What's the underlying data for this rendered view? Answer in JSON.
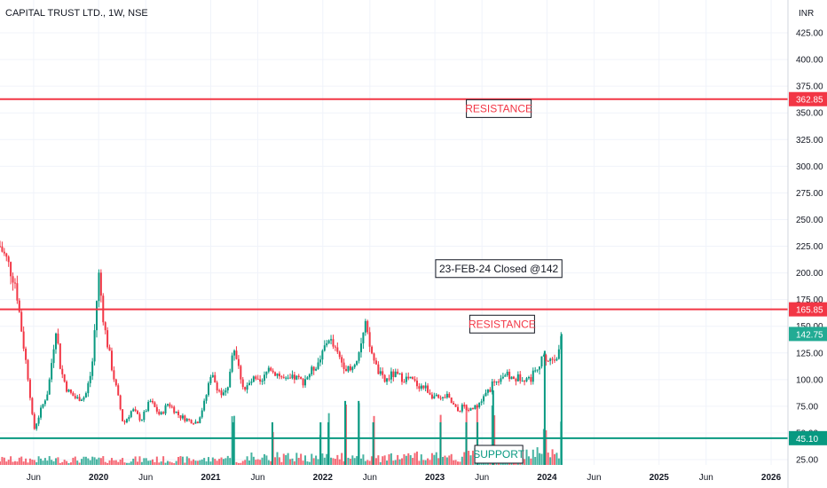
{
  "chart_data": {
    "type": "candlestick",
    "title": "CAPITAL TRUST LTD., 1W, NSE",
    "currency": "INR",
    "y_axis": {
      "range": [
        20,
        440
      ],
      "ticks": [
        "425.00",
        "400.00",
        "375.00",
        "350.00",
        "325.00",
        "300.00",
        "275.00",
        "250.00",
        "225.00",
        "200.00",
        "175.00",
        "150.00",
        "125.00",
        "100.00",
        "75.00",
        "50.00",
        "25.00"
      ],
      "tick_values": [
        425,
        400,
        375,
        350,
        325,
        300,
        275,
        250,
        225,
        200,
        175,
        150,
        125,
        100,
        75,
        50,
        25
      ]
    },
    "x_axis": {
      "labels": [
        "Jun",
        "2020",
        "Jun",
        "2021",
        "Jun",
        "2022",
        "Jun",
        "2023",
        "Jun",
        "2024",
        "Jun",
        "2025",
        "Jun",
        "2026"
      ],
      "dates": [
        2019.42,
        2020.0,
        2020.42,
        2021.0,
        2021.42,
        2022.0,
        2022.42,
        2023.0,
        2023.42,
        2024.0,
        2024.42,
        2025.0,
        2025.42,
        2026.0
      ],
      "range": [
        2019.12,
        2026.15
      ]
    },
    "levels": [
      {
        "label": "362.85",
        "value": 362.85,
        "color": "#f23645"
      },
      {
        "label": "165.85",
        "value": 165.85,
        "color": "#f23645"
      },
      {
        "label": "45.10",
        "value": 45.1,
        "color": "#089981"
      }
    ],
    "last_price": {
      "label": "142.75",
      "value": 142.75,
      "color": "#22ab94"
    },
    "annotations": [
      {
        "text": "RESISTANCE",
        "date": 2023.57,
        "value": 354,
        "color": "#f23645"
      },
      {
        "text": "23-FEB-24 Closed @142",
        "date": 2023.57,
        "value": 204,
        "color": "#131722"
      },
      {
        "text": "RESISTANCE",
        "date": 2023.6,
        "value": 152,
        "color": "#f23645"
      },
      {
        "text": "SUPPORT",
        "date": 2023.57,
        "value": 30,
        "color": "#089981"
      }
    ],
    "price_path": [
      [
        2019.12,
        225
      ],
      [
        2019.18,
        212
      ],
      [
        2019.26,
        190
      ],
      [
        2019.32,
        140
      ],
      [
        2019.38,
        95
      ],
      [
        2019.42,
        52
      ],
      [
        2019.48,
        70
      ],
      [
        2019.55,
        90
      ],
      [
        2019.62,
        150
      ],
      [
        2019.66,
        110
      ],
      [
        2019.72,
        90
      ],
      [
        2019.8,
        82
      ],
      [
        2019.88,
        84
      ],
      [
        2019.94,
        110
      ],
      [
        2020.0,
        200
      ],
      [
        2020.05,
        150
      ],
      [
        2020.12,
        110
      ],
      [
        2020.18,
        80
      ],
      [
        2020.22,
        58
      ],
      [
        2020.3,
        72
      ],
      [
        2020.38,
        62
      ],
      [
        2020.46,
        80
      ],
      [
        2020.55,
        66
      ],
      [
        2020.62,
        78
      ],
      [
        2020.72,
        66
      ],
      [
        2020.8,
        62
      ],
      [
        2020.88,
        60
      ],
      [
        2020.95,
        80
      ],
      [
        2021.0,
        106
      ],
      [
        2021.05,
        95
      ],
      [
        2021.1,
        85
      ],
      [
        2021.15,
        88
      ],
      [
        2021.2,
        135
      ],
      [
        2021.25,
        110
      ],
      [
        2021.3,
        90
      ],
      [
        2021.38,
        100
      ],
      [
        2021.45,
        95
      ],
      [
        2021.52,
        112
      ],
      [
        2021.6,
        105
      ],
      [
        2021.68,
        98
      ],
      [
        2021.75,
        102
      ],
      [
        2021.82,
        98
      ],
      [
        2021.9,
        108
      ],
      [
        2021.98,
        120
      ],
      [
        2022.05,
        140
      ],
      [
        2022.12,
        125
      ],
      [
        2022.18,
        115
      ],
      [
        2022.25,
        108
      ],
      [
        2022.32,
        125
      ],
      [
        2022.38,
        150
      ],
      [
        2022.42,
        130
      ],
      [
        2022.48,
        110
      ],
      [
        2022.55,
        98
      ],
      [
        2022.62,
        105
      ],
      [
        2022.7,
        102
      ],
      [
        2022.78,
        100
      ],
      [
        2022.85,
        95
      ],
      [
        2022.92,
        92
      ],
      [
        2022.98,
        85
      ],
      [
        2023.05,
        80
      ],
      [
        2023.1,
        85
      ],
      [
        2023.15,
        78
      ],
      [
        2023.2,
        70
      ],
      [
        2023.25,
        75
      ],
      [
        2023.3,
        72
      ],
      [
        2023.36,
        76
      ],
      [
        2023.42,
        80
      ],
      [
        2023.48,
        90
      ],
      [
        2023.55,
        100
      ],
      [
        2023.62,
        105
      ],
      [
        2023.7,
        100
      ],
      [
        2023.78,
        103
      ],
      [
        2023.85,
        100
      ],
      [
        2023.92,
        115
      ],
      [
        2023.98,
        120
      ],
      [
        2024.04,
        118
      ],
      [
        2024.1,
        125
      ],
      [
        2024.14,
        142.75
      ]
    ],
    "spike_dates": [
      2021.2,
      2021.55,
      2021.98,
      2022.05,
      2022.2,
      2022.32,
      2022.45,
      2023.05,
      2023.28,
      2023.38,
      2023.52,
      2023.98,
      2024.13
    ]
  }
}
